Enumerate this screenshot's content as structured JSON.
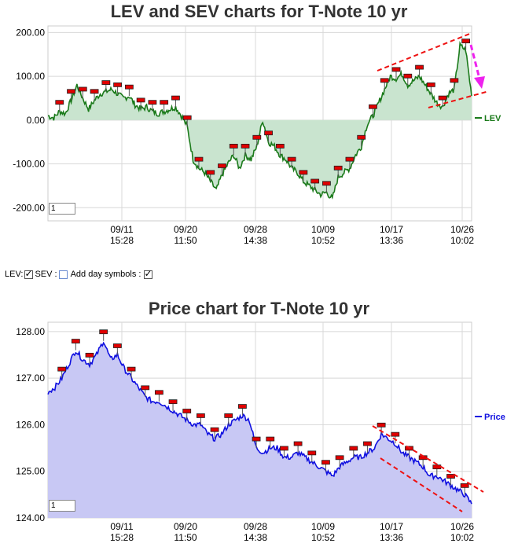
{
  "controls": {
    "lev_label": "LEV:",
    "lev_checked": true,
    "sev_label": "SEV :",
    "sev_checked": false,
    "day_symbols_label": "Add day symbols :",
    "day_symbols_checked": true
  },
  "chart_data": [
    {
      "type": "area",
      "title": "LEV and SEV charts for T-Note 10 yr",
      "legend": "LEV",
      "legend_position": "right",
      "ylim": [
        -230,
        215
      ],
      "y_ticks": [
        "200.00",
        "100.00",
        "0.00",
        "-100.00",
        "-200.00"
      ],
      "x_ticks": [
        {
          "date": "09/11",
          "time": "15:28"
        },
        {
          "date": "09/20",
          "time": "11:50"
        },
        {
          "date": "09/28",
          "time": "14:38"
        },
        {
          "date": "10/09",
          "time": "10:52"
        },
        {
          "date": "10/17",
          "time": "13:36"
        },
        {
          "date": "10/26",
          "time": "10:02"
        }
      ],
      "box_label": "1",
      "line_color": "#1a7a1a",
      "fill_color": "#c9e4cf",
      "series": [
        {
          "values": [
            10,
            5,
            20,
            15,
            45,
            80,
            50,
            25,
            45,
            60,
            65,
            70,
            60,
            50,
            55,
            35,
            25,
            30,
            20,
            15,
            20,
            25,
            30,
            10,
            -15,
            -90,
            -110,
            -120,
            -140,
            -160,
            -125,
            -100,
            -80,
            -110,
            -80,
            -90,
            -60,
            0,
            -50,
            -60,
            -80,
            -90,
            -110,
            -120,
            -140,
            -150,
            -160,
            -170,
            -165,
            -180,
            -130,
            -120,
            -110,
            -80,
            -60,
            -10,
            10,
            40,
            70,
            100,
            95,
            105,
            80,
            90,
            100,
            80,
            60,
            40,
            30,
            60,
            70,
            170,
            160,
            55
          ]
        }
      ],
      "annotations": [
        "upper red dashed trendline",
        "lower red dashed trendline",
        "magenta dashed down arrow"
      ]
    },
    {
      "type": "area",
      "title": "Price chart for T-Note 10 yr",
      "legend": "Price",
      "legend_position": "right",
      "ylim": [
        124.0,
        128.2
      ],
      "y_ticks": [
        "128.00",
        "127.00",
        "126.00",
        "125.00",
        "124.00"
      ],
      "x_ticks": [
        {
          "date": "09/11",
          "time": "15:28"
        },
        {
          "date": "09/20",
          "time": "11:50"
        },
        {
          "date": "09/28",
          "time": "14:38"
        },
        {
          "date": "10/09",
          "time": "10:52"
        },
        {
          "date": "10/17",
          "time": "13:36"
        },
        {
          "date": "10/26",
          "time": "10:02"
        }
      ],
      "box_label": "1",
      "line_color": "#1010e0",
      "fill_color": "#c8c8f4",
      "series": [
        {
          "values": [
            126.7,
            126.8,
            127.0,
            127.3,
            127.6,
            127.4,
            127.3,
            127.5,
            127.8,
            127.4,
            127.5,
            127.2,
            127.0,
            126.8,
            126.6,
            126.5,
            126.5,
            126.4,
            126.3,
            126.2,
            126.1,
            126.0,
            126.0,
            125.8,
            125.7,
            125.8,
            126.0,
            126.1,
            126.2,
            126.1,
            125.5,
            125.4,
            125.5,
            125.5,
            125.3,
            125.3,
            125.4,
            125.3,
            125.2,
            125.1,
            125.0,
            124.9,
            125.1,
            125.2,
            125.3,
            125.3,
            125.4,
            125.5,
            125.8,
            125.7,
            125.6,
            125.4,
            125.3,
            125.2,
            125.1,
            124.9,
            124.9,
            124.8,
            124.7,
            124.6,
            124.5,
            124.3
          ]
        }
      ],
      "annotations": [
        "upper red dashed trendline",
        "lower red dashed trendline"
      ]
    }
  ]
}
